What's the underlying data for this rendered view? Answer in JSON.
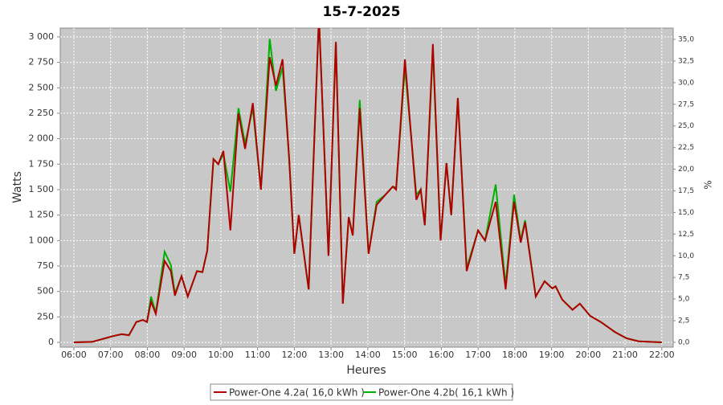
{
  "chart_data": {
    "type": "line",
    "title": "15-7-2025",
    "x_label": "Heures",
    "y_label": "Watts",
    "y2_label": "%",
    "x": [
      6.0,
      6.5,
      7.05,
      7.3,
      7.5,
      7.7,
      7.88,
      7.99,
      8.1,
      8.23,
      8.47,
      8.64,
      8.75,
      8.93,
      9.1,
      9.35,
      9.5,
      9.63,
      9.8,
      9.93,
      10.07,
      10.26,
      10.48,
      10.66,
      10.87,
      11.09,
      11.33,
      11.5,
      11.68,
      11.86,
      12.0,
      12.12,
      12.39,
      12.67,
      12.93,
      13.13,
      13.32,
      13.48,
      13.59,
      13.78,
      14.02,
      14.24,
      14.48,
      14.68,
      14.77,
      15.01,
      15.32,
      15.44,
      15.55,
      15.77,
      15.98,
      16.14,
      16.27,
      16.45,
      16.69,
      17.0,
      17.19,
      17.48,
      17.75,
      17.98,
      18.16,
      18.28,
      18.57,
      18.81,
      19.02,
      19.11,
      19.29,
      19.57,
      19.77,
      20.05,
      20.34,
      20.73,
      21.04,
      21.37,
      22.0
    ],
    "series": [
      {
        "name": "Power-One 4.2b( 16,1 kWh )",
        "color": "#00b000",
        "values": [
          0,
          5,
          60,
          80,
          70,
          200,
          220,
          200,
          450,
          290,
          890,
          760,
          480,
          650,
          450,
          700,
          690,
          900,
          1800,
          1750,
          1850,
          1480,
          2300,
          1950,
          2300,
          1500,
          2980,
          2470,
          2700,
          1800,
          870,
          1250,
          520,
          3200,
          850,
          2950,
          380,
          1230,
          1050,
          2380,
          870,
          1380,
          1450,
          1530,
          1520,
          2700,
          1450,
          1500,
          1150,
          2870,
          1000,
          1760,
          1250,
          2400,
          730,
          1100,
          1000,
          1550,
          560,
          1450,
          1000,
          1200,
          450,
          600,
          530,
          550,
          420,
          320,
          380,
          260,
          200,
          100,
          40,
          10,
          0
        ]
      },
      {
        "name": "Power-One 4.2a( 16,0 kWh )",
        "color": "#b00000",
        "values": [
          0,
          5,
          60,
          80,
          70,
          200,
          220,
          200,
          400,
          280,
          800,
          700,
          460,
          650,
          450,
          700,
          690,
          900,
          1800,
          1750,
          1880,
          1100,
          2250,
          1900,
          2350,
          1500,
          2800,
          2520,
          2780,
          1800,
          870,
          1250,
          520,
          3200,
          850,
          2950,
          380,
          1230,
          1050,
          2300,
          870,
          1350,
          1450,
          1530,
          1500,
          2780,
          1400,
          1500,
          1150,
          2930,
          1000,
          1760,
          1250,
          2400,
          700,
          1100,
          1000,
          1380,
          520,
          1380,
          980,
          1180,
          450,
          600,
          530,
          550,
          420,
          320,
          380,
          260,
          200,
          100,
          40,
          10,
          0
        ]
      }
    ],
    "xlim": [
      5.63,
      22.31
    ],
    "xticks": [
      {
        "value": 6,
        "label": "06:00"
      },
      {
        "value": 7,
        "label": "07:00"
      },
      {
        "value": 8,
        "label": "08:00"
      },
      {
        "value": 9,
        "label": "09:00"
      },
      {
        "value": 10,
        "label": "10:00"
      },
      {
        "value": 11,
        "label": "11:00"
      },
      {
        "value": 12,
        "label": "12:00"
      },
      {
        "value": 13,
        "label": "13:00"
      },
      {
        "value": 14,
        "label": "14:00"
      },
      {
        "value": 15,
        "label": "15:00"
      },
      {
        "value": 16,
        "label": "16:00"
      },
      {
        "value": 17,
        "label": "17:00"
      },
      {
        "value": 18,
        "label": "18:00"
      },
      {
        "value": 19,
        "label": "19:00"
      },
      {
        "value": 20,
        "label": "20:00"
      },
      {
        "value": 21,
        "label": "21:00"
      },
      {
        "value": 22,
        "label": "22:00"
      }
    ],
    "ylim": [
      -47,
      3086
    ],
    "yticks": [
      0,
      250,
      500,
      750,
      {
        "value": 1000,
        "label": "1 000"
      },
      {
        "value": 1250,
        "label": "1 250"
      },
      {
        "value": 1500,
        "label": "1 500"
      },
      {
        "value": 1750,
        "label": "1 750"
      },
      {
        "value": 2000,
        "label": "2 000"
      },
      {
        "value": 2250,
        "label": "2 250"
      },
      {
        "value": 2500,
        "label": "2 500"
      },
      {
        "value": 2750,
        "label": "2 750"
      },
      {
        "value": 3000,
        "label": "3 000"
      }
    ],
    "y2lim": [
      -0.56,
      36.3
    ],
    "y2ticks": [
      {
        "value": 0,
        "label": "0,0"
      },
      {
        "value": 2.5,
        "label": "2,5"
      },
      {
        "value": 5,
        "label": "5,0"
      },
      {
        "value": 7.5,
        "label": "7,5"
      },
      {
        "value": 10,
        "label": "10,0"
      },
      {
        "value": 12.5,
        "label": "12,5"
      },
      {
        "value": 15,
        "label": "15,0"
      },
      {
        "value": 17.5,
        "label": "17,5"
      },
      {
        "value": 20,
        "label": "20,0"
      },
      {
        "value": 22.5,
        "label": "22,5"
      },
      {
        "value": 25,
        "label": "25,0"
      },
      {
        "value": 27.5,
        "label": "27,5"
      },
      {
        "value": 30,
        "label": "30,0"
      },
      {
        "value": 32.5,
        "label": "32,5"
      },
      {
        "value": 35,
        "label": "35,0"
      }
    ],
    "grid": true
  }
}
